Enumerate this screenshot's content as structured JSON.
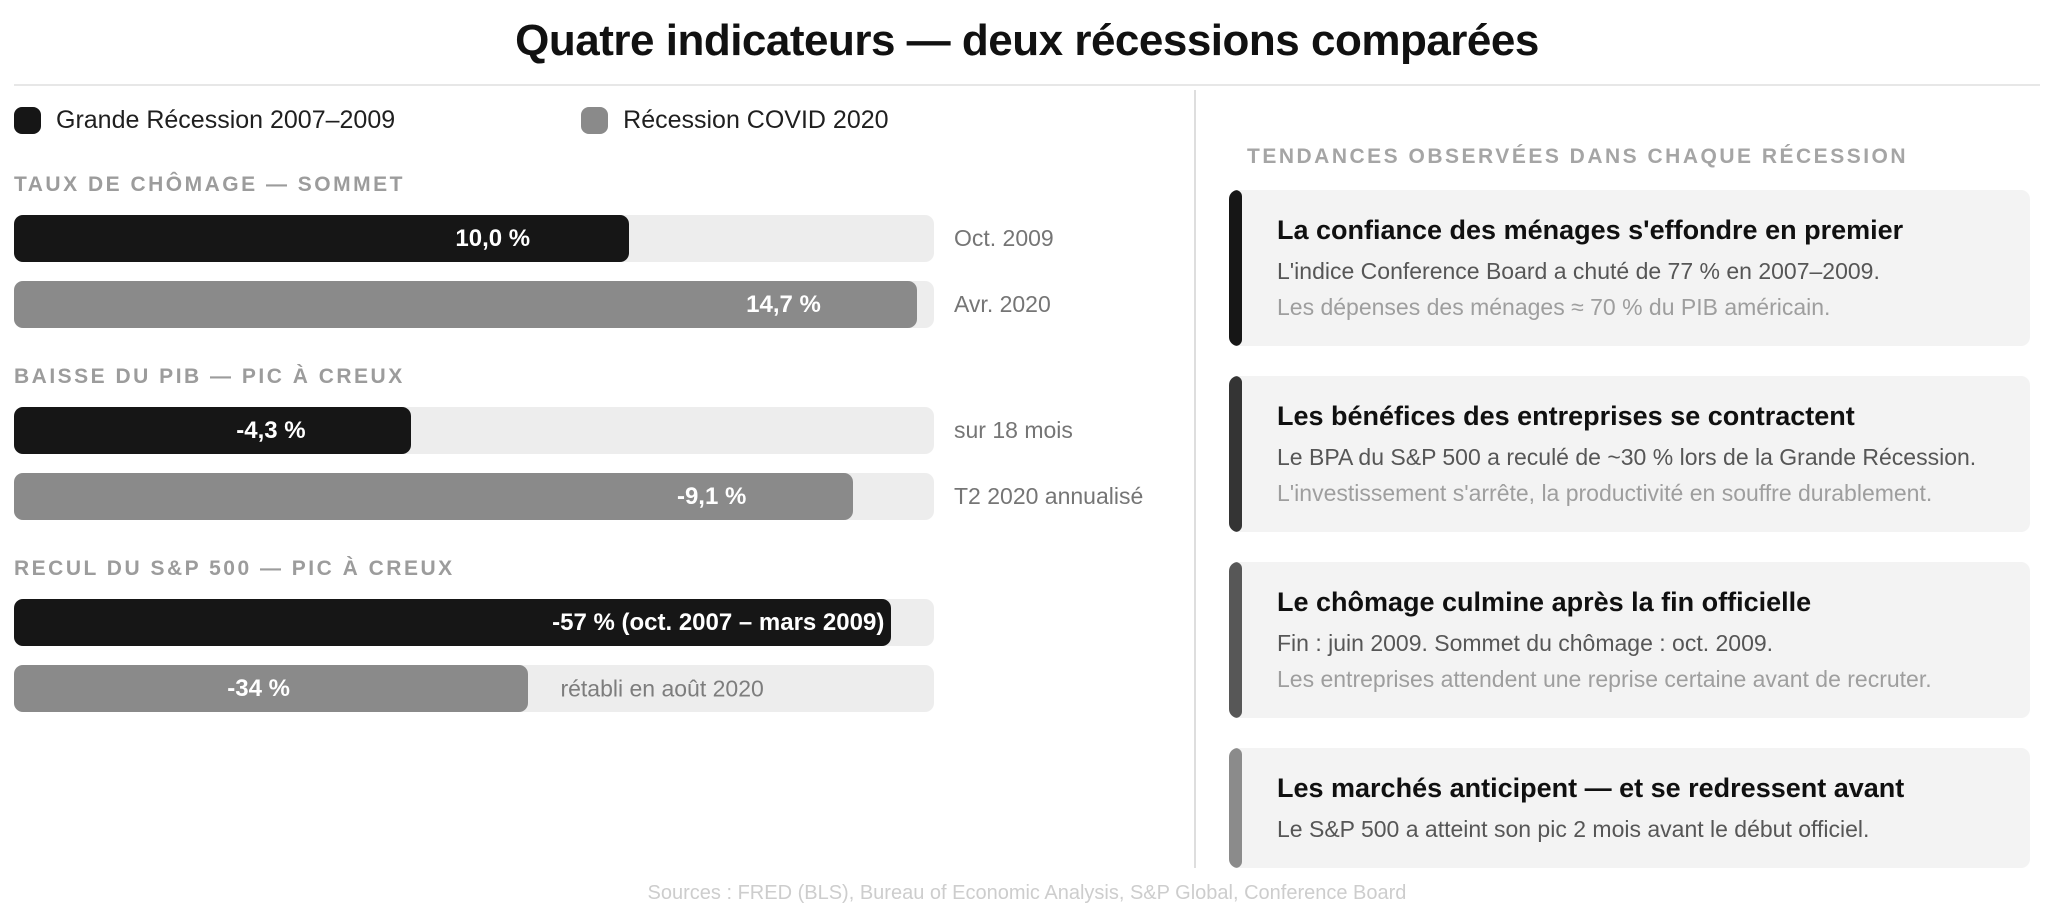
{
  "title": "Quatre indicateurs — deux récessions comparées",
  "colors": {
    "series1": "#161616",
    "series2": "#8a8a8a",
    "track": "#ededed",
    "card_bg": "#f3f3f3"
  },
  "legend": [
    {
      "label": "Grande Récession 2007–2009",
      "color": "#161616"
    },
    {
      "label": "Récession COVID 2020",
      "color": "#8a8a8a"
    }
  ],
  "chart_data": {
    "type": "bar",
    "orientation": "horizontal",
    "unit": "%",
    "series_names": [
      "Grande Récession 2007–2009",
      "Récession COVID 2020"
    ],
    "groups": [
      {
        "title": "TAUX DE CHÔMAGE — SOMMET",
        "axis_max": 15,
        "rows": [
          {
            "series": "Grande Récession 2007–2009",
            "value": 10.0,
            "value_label": "10,0 %",
            "side_label": "Oct. 2009",
            "bar_pct": 66.8,
            "label_right_pct": 56.1,
            "inside_label": ""
          },
          {
            "series": "Récession COVID 2020",
            "value": 14.7,
            "value_label": "14,7 %",
            "side_label": "Avr. 2020",
            "bar_pct": 98.1,
            "label_right_pct": 87.7,
            "inside_label": ""
          }
        ]
      },
      {
        "title": "BAISSE DU PIB — PIC À CREUX",
        "axis_max": 10,
        "rows": [
          {
            "series": "Grande Récession 2007–2009",
            "value": -4.3,
            "value_label": "-4,3 %",
            "side_label": "sur 18 mois",
            "bar_pct": 43.1,
            "label_right_pct": 31.7,
            "inside_label": ""
          },
          {
            "series": "Récession COVID 2020",
            "value": -9.1,
            "value_label": "-9,1 %",
            "side_label": "T2 2020 annualisé",
            "bar_pct": 91.2,
            "label_right_pct": 79.6,
            "inside_label": ""
          }
        ]
      },
      {
        "title": "RECUL DU S&P 500 — PIC À CREUX",
        "axis_max": 60,
        "rows": [
          {
            "series": "Grande Récession 2007–2009",
            "value": -57,
            "value_label": "-57 % (oct. 2007 – mars 2009)",
            "side_label": "",
            "bar_pct": 95.3,
            "label_right_pct": 94.6,
            "inside_label": ""
          },
          {
            "series": "Récession COVID 2020",
            "value": -34,
            "value_label": "-34 %",
            "side_label": "",
            "bar_pct": 55.9,
            "label_right_pct": 30.0,
            "inside_label": "rétabli en août 2020",
            "inside_label_left_pct": 59.4
          }
        ]
      }
    ]
  },
  "insights": {
    "header": "TENDANCES OBSERVÉES DANS CHAQUE RÉCESSION",
    "cards": [
      {
        "accent": "#161616",
        "title": "La confiance des ménages s'effondre en premier",
        "line1": "L'indice Conference Board a chuté de 77 % en 2007–2009.",
        "line2": "Les dépenses des ménages ≈ 70 % du PIB américain."
      },
      {
        "accent": "#343434",
        "title": "Les bénéfices des entreprises se contractent",
        "line1": "Le BPA du S&P 500 a reculé de ~30 % lors de la Grande Récession.",
        "line2": "L'investissement s'arrête, la productivité en souffre durablement."
      },
      {
        "accent": "#575757",
        "title": "Le chômage culmine après la fin officielle",
        "line1": "Fin : juin 2009. Sommet du chômage : oct. 2009.",
        "line2": "Les entreprises attendent une reprise certaine avant de recruter."
      },
      {
        "accent": "#8b8b8b",
        "title": "Les marchés anticipent — et se redressent avant",
        "line1": "Le S&P 500 a atteint son pic 2 mois avant le début officiel.",
        "line2": ""
      }
    ]
  },
  "footer": "Sources : FRED (BLS), Bureau of Economic Analysis, S&P Global, Conference Board"
}
